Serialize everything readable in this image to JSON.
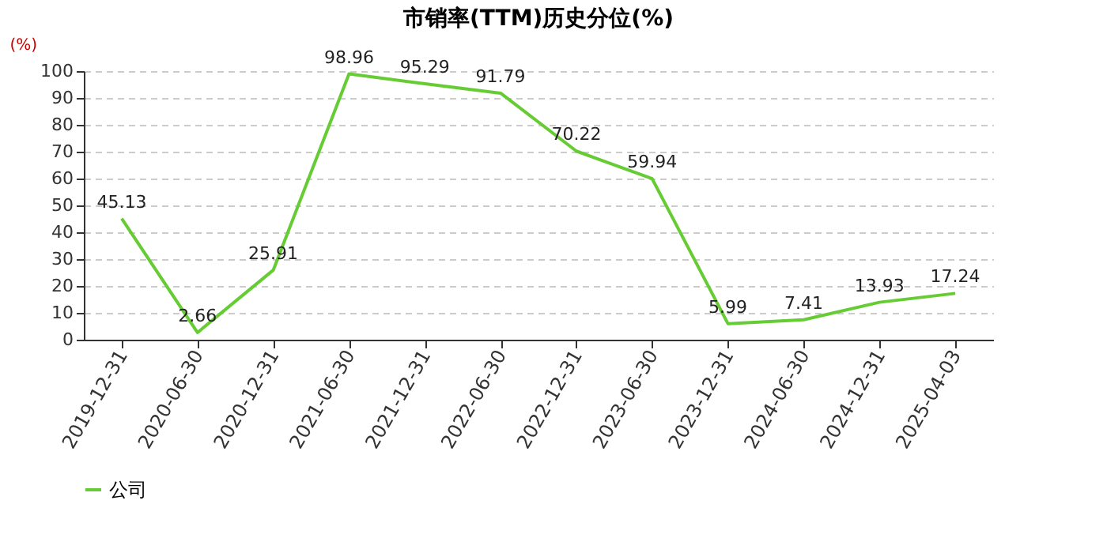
{
  "chart_data": {
    "type": "line",
    "title": "市销率(TTM)历史分位(%)",
    "ylabel": "(%)",
    "categories": [
      "2019-12-31",
      "2020-06-30",
      "2020-12-31",
      "2021-06-30",
      "2021-12-31",
      "2022-06-30",
      "2022-12-31",
      "2023-06-30",
      "2023-12-31",
      "2024-06-30",
      "2024-12-31",
      "2025-04-03"
    ],
    "series": [
      {
        "name": "公司",
        "color": "#66cc33",
        "values": [
          45.13,
          2.66,
          25.91,
          98.96,
          95.29,
          91.79,
          70.22,
          59.94,
          5.99,
          7.41,
          13.93,
          17.24
        ]
      }
    ],
    "ylim": [
      0,
      100
    ],
    "yticks": [
      0,
      10,
      20,
      30,
      40,
      50,
      60,
      70,
      80,
      90,
      100
    ],
    "grid": "y",
    "legend": "bottom",
    "data_labels": true,
    "marker": "none",
    "line_style": "solid"
  }
}
